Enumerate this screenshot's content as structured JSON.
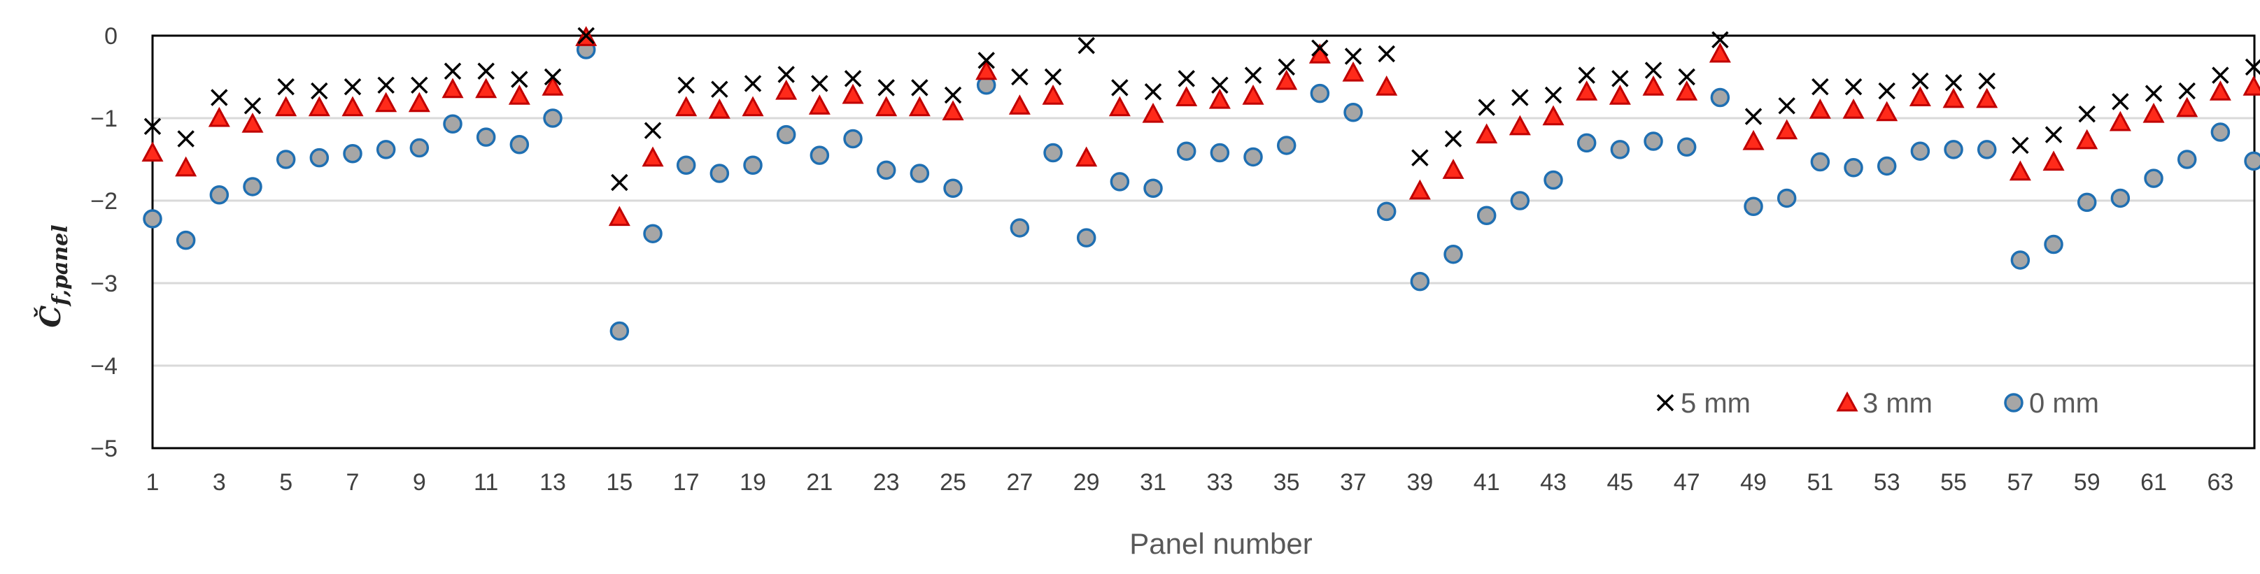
{
  "chart_data": {
    "type": "scatter",
    "xlabel": "Panel number",
    "ylabel": {
      "main": "Č",
      "sub": "f,panel"
    },
    "ylim": [
      -5,
      0
    ],
    "xlim": [
      1,
      64
    ],
    "yticks": [
      "0",
      "−1",
      "−2",
      "−3",
      "−4",
      "−5"
    ],
    "ytick_values": [
      0,
      -1,
      -2,
      -3,
      -4,
      -5
    ],
    "xticks": [
      "1",
      "3",
      "5",
      "7",
      "9",
      "11",
      "13",
      "15",
      "17",
      "19",
      "21",
      "23",
      "25",
      "27",
      "29",
      "31",
      "33",
      "35",
      "37",
      "39",
      "41",
      "43",
      "45",
      "47",
      "49",
      "51",
      "53",
      "55",
      "57",
      "59",
      "61",
      "63"
    ],
    "grid": "horizontal",
    "legend_position": "bottom-right",
    "x": [
      1,
      2,
      3,
      4,
      5,
      6,
      7,
      8,
      9,
      10,
      11,
      12,
      13,
      14,
      15,
      16,
      17,
      18,
      19,
      20,
      21,
      22,
      23,
      24,
      25,
      26,
      27,
      28,
      29,
      30,
      31,
      32,
      33,
      34,
      35,
      36,
      37,
      38,
      39,
      40,
      41,
      42,
      43,
      44,
      45,
      46,
      47,
      48,
      49,
      50,
      51,
      52,
      53,
      54,
      55,
      56,
      57,
      58,
      59,
      60,
      61,
      62,
      63,
      64
    ],
    "series": [
      {
        "name": "5 mm",
        "marker": "x",
        "color": "#000000",
        "values": [
          -1.1,
          -1.25,
          -0.75,
          -0.85,
          -0.62,
          -0.67,
          -0.62,
          -0.6,
          -0.6,
          -0.43,
          -0.43,
          -0.53,
          -0.5,
          0.0,
          -1.78,
          -1.15,
          -0.6,
          -0.65,
          -0.58,
          -0.47,
          -0.58,
          -0.52,
          -0.63,
          -0.63,
          -0.72,
          -0.3,
          -0.5,
          -0.5,
          -0.12,
          -0.63,
          -0.68,
          -0.52,
          -0.6,
          -0.48,
          -0.38,
          -0.15,
          -0.25,
          -0.22,
          -1.48,
          -1.25,
          -0.87,
          -0.75,
          -0.72,
          -0.48,
          -0.52,
          -0.42,
          -0.5,
          -0.05,
          -0.98,
          -0.85,
          -0.62,
          -0.62,
          -0.67,
          -0.55,
          -0.57,
          -0.55,
          -1.33,
          -1.2,
          -0.95,
          -0.8,
          -0.7,
          -0.67,
          -0.48,
          -0.38
        ]
      },
      {
        "name": "3 mm",
        "marker": "triangle",
        "color": "#ff2a1a",
        "values": [
          -1.42,
          -1.6,
          -1.0,
          -1.07,
          -0.87,
          -0.87,
          -0.87,
          -0.82,
          -0.82,
          -0.65,
          -0.65,
          -0.73,
          -0.62,
          -0.02,
          -2.2,
          -1.48,
          -0.87,
          -0.9,
          -0.87,
          -0.67,
          -0.85,
          -0.72,
          -0.87,
          -0.87,
          -0.92,
          -0.43,
          -0.85,
          -0.73,
          -1.48,
          -0.87,
          -0.95,
          -0.75,
          -0.78,
          -0.73,
          -0.55,
          -0.23,
          -0.45,
          -0.62,
          -1.88,
          -1.63,
          -1.2,
          -1.1,
          -0.98,
          -0.68,
          -0.73,
          -0.62,
          -0.68,
          -0.22,
          -1.28,
          -1.15,
          -0.9,
          -0.9,
          -0.93,
          -0.75,
          -0.77,
          -0.77,
          -1.65,
          -1.53,
          -1.27,
          -1.05,
          -0.95,
          -0.88,
          -0.68,
          -0.62
        ]
      },
      {
        "name": "0 mm",
        "marker": "circle",
        "color": "#a6a6a6",
        "values": [
          -2.22,
          -2.48,
          -1.93,
          -1.83,
          -1.5,
          -1.48,
          -1.43,
          -1.38,
          -1.36,
          -1.07,
          -1.23,
          -1.32,
          -1.0,
          -0.17,
          -3.58,
          -2.4,
          -1.57,
          -1.67,
          -1.57,
          -1.2,
          -1.45,
          -1.25,
          -1.63,
          -1.67,
          -1.85,
          -0.6,
          -2.33,
          -1.42,
          -2.45,
          -1.77,
          -1.85,
          -1.4,
          -1.42,
          -1.47,
          -1.33,
          -0.7,
          -0.93,
          -2.13,
          -2.98,
          -2.65,
          -2.18,
          -2.0,
          -1.75,
          -1.3,
          -1.38,
          -1.28,
          -1.35,
          -0.75,
          -2.07,
          -1.97,
          -1.53,
          -1.6,
          -1.58,
          -1.4,
          -1.38,
          -1.38,
          -2.72,
          -2.53,
          -2.02,
          -1.97,
          -1.73,
          -1.5,
          -1.17,
          -1.52
        ]
      }
    ]
  }
}
